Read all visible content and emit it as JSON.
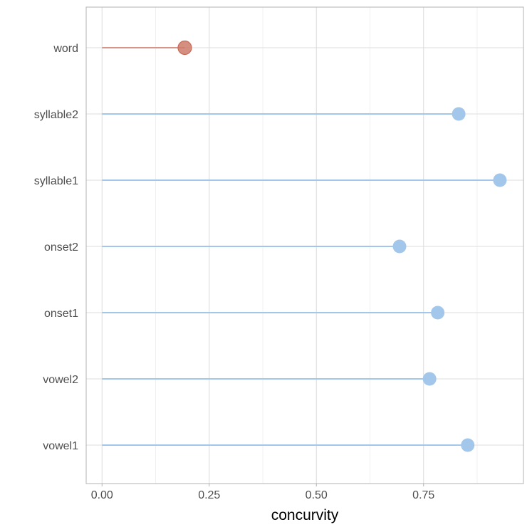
{
  "chart_data": {
    "type": "lollipop",
    "title": "",
    "xlabel": "concurvity",
    "ylabel": "",
    "xlim": [
      -0.037,
      0.983
    ],
    "x_ticks": [
      0,
      0.25,
      0.5,
      0.75
    ],
    "x_tick_labels": [
      "0.00",
      "0.25",
      "0.50",
      "0.75"
    ],
    "x_minor_ticks": [
      0.125,
      0.375,
      0.625,
      0.875
    ],
    "grid": true,
    "legend": "none",
    "categories": [
      "word",
      "syllable2",
      "syllable1",
      "onset2",
      "onset1",
      "vowel2",
      "vowel1"
    ],
    "values": [
      0.193,
      0.832,
      0.928,
      0.694,
      0.783,
      0.764,
      0.853
    ],
    "colors": [
      "#cd7b6b",
      "#a3c6eb",
      "#a3c6eb",
      "#a3c6eb",
      "#a3c6eb",
      "#a3c6eb",
      "#a3c6eb"
    ],
    "line_colors": [
      "#d9948a",
      "#a3c6eb",
      "#a3c6eb",
      "#a3c6eb",
      "#a3c6eb",
      "#a3c6eb",
      "#a3c6eb"
    ],
    "panel_border_color": "#b3b3b3",
    "grid_major_color": "#dedede",
    "grid_minor_color": "#ececec"
  }
}
